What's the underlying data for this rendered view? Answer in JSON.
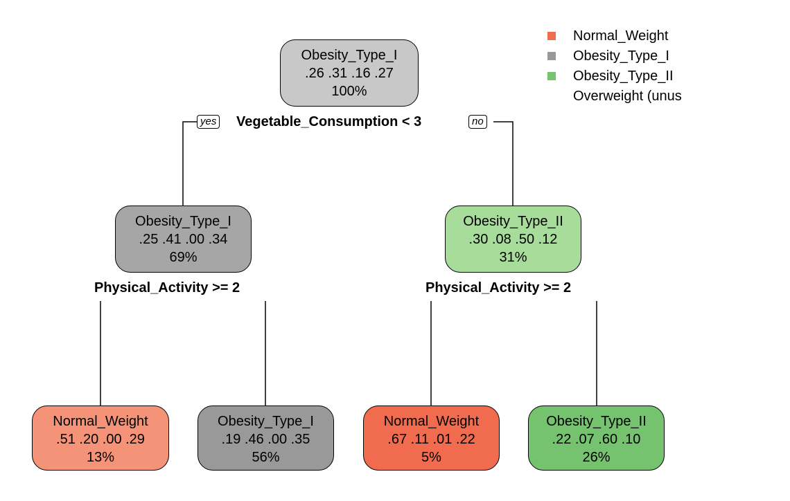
{
  "colors": {
    "normal_weight": "#f16b4e",
    "obesity_type_i": "#999999",
    "obesity_type_ii": "#75c36f"
  },
  "legend": [
    {
      "label": "Normal_Weight",
      "color": "#f16b4e"
    },
    {
      "label": "Obesity_Type_I",
      "color": "#999999"
    },
    {
      "label": "Obesity_Type_II",
      "color": "#75c36f"
    },
    {
      "label": "Overweight (unus",
      "color": null
    }
  ],
  "splits": {
    "root": "Vegetable_Consumption < 3",
    "left": "Physical_Activity >= 2",
    "right": "Physical_Activity >= 2",
    "yes": "yes",
    "no": "no"
  },
  "nodes": {
    "root": {
      "class": "Obesity_Type_I",
      "probs": ".26  .31  .16  .27",
      "pct": "100%",
      "fill": "#c8c8c8"
    },
    "n2": {
      "class": "Obesity_Type_I",
      "probs": ".25  .41  .00  .34",
      "pct": "69%",
      "fill": "#a6a6a6"
    },
    "n3": {
      "class": "Obesity_Type_II",
      "probs": ".30  .08  .50  .12",
      "pct": "31%",
      "fill": "#a8dc9b"
    },
    "n4": {
      "class": "Normal_Weight",
      "probs": ".51  .20  .00  .29",
      "pct": "13%",
      "fill": "#f59378"
    },
    "n5": {
      "class": "Obesity_Type_I",
      "probs": ".19  .46  .00  .35",
      "pct": "56%",
      "fill": "#999999"
    },
    "n6": {
      "class": "Normal_Weight",
      "probs": ".67  .11  .01  .22",
      "pct": "5%",
      "fill": "#f16b4e"
    },
    "n7": {
      "class": "Obesity_Type_II",
      "probs": ".22  .07  .60  .10",
      "pct": "26%",
      "fill": "#75c36f"
    }
  }
}
